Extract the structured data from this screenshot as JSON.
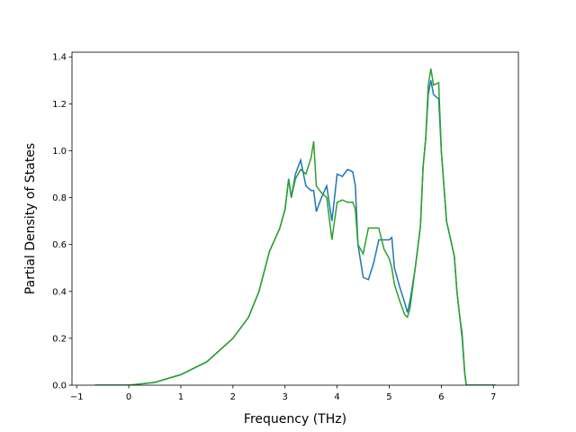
{
  "chart_data": {
    "type": "line",
    "xlabel": "Frequency (THz)",
    "ylabel": "Partial Density of States",
    "x": [
      -0.65,
      0,
      0.5,
      1,
      1.5,
      2,
      2.3,
      2.5,
      2.7,
      2.9,
      3.0,
      3.07,
      3.12,
      3.2,
      3.3,
      3.4,
      3.5,
      3.55,
      3.6,
      3.7,
      3.8,
      3.9,
      4.0,
      4.1,
      4.2,
      4.3,
      4.35,
      4.4,
      4.5,
      4.6,
      4.7,
      4.8,
      4.9,
      5.0,
      5.05,
      5.1,
      5.2,
      5.3,
      5.35,
      5.4,
      5.5,
      5.6,
      5.65,
      5.7,
      5.75,
      5.8,
      5.85,
      5.95,
      6.0,
      6.1,
      6.2,
      6.25,
      6.3,
      6.35,
      6.4,
      6.45,
      6.48,
      7.05
    ],
    "series": [
      {
        "color": "#1f77b4",
        "values": [
          0,
          0,
          0.012,
          0.045,
          0.1,
          0.2,
          0.29,
          0.4,
          0.57,
          0.67,
          0.75,
          0.88,
          0.8,
          0.9,
          0.96,
          0.85,
          0.83,
          0.83,
          0.74,
          0.8,
          0.85,
          0.7,
          0.9,
          0.89,
          0.92,
          0.91,
          0.85,
          0.6,
          0.46,
          0.45,
          0.52,
          0.62,
          0.62,
          0.62,
          0.63,
          0.5,
          0.42,
          0.35,
          0.31,
          0.36,
          0.5,
          0.68,
          0.93,
          1.05,
          1.24,
          1.3,
          1.24,
          1.22,
          1.0,
          0.7,
          0.6,
          0.55,
          0.4,
          0.3,
          0.2,
          0.05,
          0,
          0
        ]
      },
      {
        "color": "#2ca02c",
        "values": [
          0,
          0,
          0.012,
          0.045,
          0.1,
          0.2,
          0.29,
          0.4,
          0.57,
          0.67,
          0.75,
          0.88,
          0.8,
          0.88,
          0.92,
          0.9,
          0.97,
          1.04,
          0.85,
          0.82,
          0.8,
          0.62,
          0.78,
          0.79,
          0.78,
          0.78,
          0.75,
          0.6,
          0.56,
          0.67,
          0.67,
          0.67,
          0.58,
          0.54,
          0.5,
          0.43,
          0.36,
          0.3,
          0.29,
          0.33,
          0.5,
          0.68,
          0.93,
          1.05,
          1.28,
          1.35,
          1.28,
          1.29,
          1.0,
          0.7,
          0.6,
          0.55,
          0.4,
          0.3,
          0.22,
          0.05,
          0,
          0
        ]
      }
    ],
    "xlim": [
      -1.09,
      7.48
    ],
    "xticks": [
      {
        "value": -1,
        "label": "−1"
      },
      0,
      1,
      2,
      3,
      4,
      5,
      6,
      7
    ],
    "ylim": [
      0,
      1.42
    ],
    "yticks": [
      {
        "value": 0,
        "label": "0.0"
      },
      0.2,
      0.4,
      0.6,
      0.8,
      {
        "value": 1,
        "label": "1.0"
      },
      1.2,
      1.4
    ]
  }
}
